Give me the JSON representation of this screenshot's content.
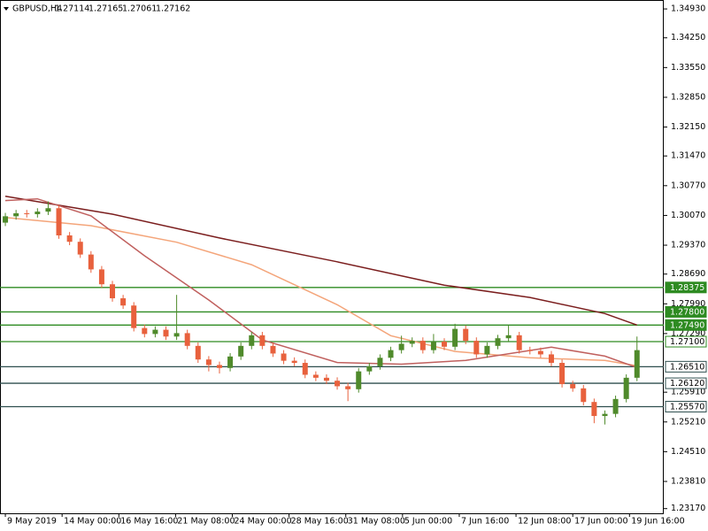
{
  "chart_data": {
    "type": "candlestick",
    "symbol": "GBPUSD,H4",
    "quote": [
      1.27114,
      1.27165,
      1.27061,
      1.27162
    ],
    "bull_color": "#4f8a2b",
    "bear_color": "#e8613d",
    "xlim": [
      -0.5,
      61.5
    ],
    "ylim": [
      1.2306,
      1.3514
    ],
    "open": [
      1.299,
      1.3005,
      1.3012,
      1.301,
      1.3016,
      1.3024,
      1.296,
      1.2945,
      1.2915,
      1.288,
      1.2845,
      1.2812,
      1.2795,
      1.2742,
      1.2728,
      1.2738,
      1.2722,
      1.273,
      1.27,
      1.2668,
      1.2655,
      1.2648,
      1.2675,
      1.27,
      1.2725,
      1.27,
      1.2682,
      1.2665,
      1.266,
      1.2632,
      1.2625,
      1.2618,
      1.2605,
      1.2598,
      1.264,
      1.2652,
      1.2672,
      1.269,
      1.2705,
      1.2712,
      1.269,
      1.271,
      1.2698,
      1.274,
      1.2712,
      1.268,
      1.27,
      1.2718,
      1.2725,
      1.269,
      1.2688,
      1.268,
      1.266,
      1.261,
      1.26,
      1.2568,
      1.2535,
      1.254,
      1.2575,
      1.2625
    ],
    "high": [
      1.3013,
      1.302,
      1.302,
      1.3024,
      1.304,
      1.3032,
      1.2968,
      1.2953,
      1.2923,
      1.2888,
      1.2853,
      1.282,
      1.2803,
      1.275,
      1.2746,
      1.2746,
      1.282,
      1.2738,
      1.2708,
      1.2676,
      1.2663,
      1.2683,
      1.2708,
      1.2733,
      1.2733,
      1.2708,
      1.269,
      1.2673,
      1.2668,
      1.264,
      1.2633,
      1.2626,
      1.2613,
      1.2648,
      1.266,
      1.268,
      1.2698,
      1.2724,
      1.272,
      1.272,
      1.2728,
      1.2718,
      1.2752,
      1.2748,
      1.272,
      1.2708,
      1.2726,
      1.2748,
      1.2733,
      1.2698,
      1.2696,
      1.2688,
      1.2668,
      1.2618,
      1.2608,
      1.2576,
      1.2548,
      1.2583,
      1.2633,
      1.2722
    ],
    "low": [
      1.2982,
      1.2997,
      1.3002,
      1.3002,
      1.3008,
      1.2952,
      1.2937,
      1.2907,
      1.2872,
      1.2837,
      1.2804,
      1.2787,
      1.2734,
      1.272,
      1.272,
      1.2714,
      1.2714,
      1.2692,
      1.266,
      1.264,
      1.2635,
      1.264,
      1.2667,
      1.2692,
      1.2692,
      1.2674,
      1.2657,
      1.2652,
      1.2624,
      1.2617,
      1.261,
      1.2597,
      1.257,
      1.259,
      1.2632,
      1.2644,
      1.2664,
      1.2682,
      1.2697,
      1.2682,
      1.2682,
      1.269,
      1.269,
      1.2704,
      1.2672,
      1.2672,
      1.2692,
      1.271,
      1.2682,
      1.268,
      1.2672,
      1.2652,
      1.2602,
      1.2592,
      1.256,
      1.2518,
      1.2515,
      1.2532,
      1.2567,
      1.2617
    ],
    "close": [
      1.3005,
      1.3012,
      1.301,
      1.3016,
      1.3024,
      1.296,
      1.2945,
      1.2915,
      1.288,
      1.2845,
      1.2812,
      1.2795,
      1.2742,
      1.2728,
      1.2738,
      1.2722,
      1.273,
      1.27,
      1.2668,
      1.2655,
      1.2648,
      1.2675,
      1.27,
      1.2725,
      1.27,
      1.2682,
      1.2665,
      1.266,
      1.2632,
      1.2625,
      1.2618,
      1.2605,
      1.2598,
      1.264,
      1.2652,
      1.2672,
      1.269,
      1.2705,
      1.2712,
      1.269,
      1.271,
      1.2698,
      1.274,
      1.2712,
      1.268,
      1.27,
      1.2718,
      1.2725,
      1.269,
      1.2688,
      1.268,
      1.266,
      1.261,
      1.26,
      1.2568,
      1.2535,
      1.254,
      1.2575,
      1.2625,
      1.269
    ],
    "series": [
      {
        "color": "#7b1e1e",
        "x": [
          0,
          10,
          20,
          31,
          41,
          49,
          56,
          59
        ],
        "values": [
          1.3052,
          1.301,
          1.2954,
          1.2898,
          1.2843,
          1.2814,
          1.2776,
          1.2749
        ]
      },
      {
        "color": "#f4a57a",
        "x": [
          0,
          8,
          16,
          23,
          31,
          36,
          42,
          49,
          56,
          59
        ],
        "values": [
          1.3002,
          1.2983,
          1.2944,
          1.2891,
          1.2797,
          1.2724,
          1.2687,
          1.2672,
          1.2666,
          1.2653
        ]
      },
      {
        "color": "#c0605e",
        "x": [
          0,
          3,
          8,
          13,
          19,
          24,
          31,
          37,
          43,
          51,
          56,
          59
        ],
        "values": [
          1.3042,
          1.3046,
          1.3006,
          1.2912,
          1.2808,
          1.2714,
          1.2661,
          1.2657,
          1.2666,
          1.2697,
          1.2676,
          1.2649
        ]
      }
    ],
    "levels": [
      {
        "price": 1.28375,
        "color": "#2e8b22",
        "filled": true
      },
      {
        "price": {
          "value": 1.278,
          "label": "1.27800"
        },
        "color": "#2e8b22",
        "filled": true
      },
      {
        "price": {
          "value": 1.2749,
          "label": "1.27490"
        },
        "color": "#2e8b22",
        "filled": true
      },
      {
        "price": {
          "value": 1.271,
          "label": "1.27100"
        },
        "color": "#2e8b22",
        "filled": false
      },
      {
        "price": {
          "value": 1.2651,
          "label": "1.26510"
        },
        "color": "#2f4f4f",
        "filled": false
      },
      {
        "price": {
          "value": 1.2612,
          "label": "1.26120"
        },
        "color": "#2f4f4f",
        "filled": false
      },
      {
        "price": {
          "value": 1.2557,
          "label": "1.25570"
        },
        "color": "#2f4f4f",
        "filled": false
      }
    ],
    "yticks": [
      {
        "value": 1.3493,
        "label": "1.34930"
      },
      {
        "value": 1.3425,
        "label": "1.34250"
      },
      {
        "value": 1.3355,
        "label": "1.33550"
      },
      {
        "value": 1.3285,
        "label": "1.32850"
      },
      {
        "value": 1.3215,
        "label": "1.32150"
      },
      {
        "value": 1.3147,
        "label": "1.31470"
      },
      {
        "value": 1.3077,
        "label": "1.30770"
      },
      {
        "value": 1.3007,
        "label": "1.30070"
      },
      {
        "value": 1.2937,
        "label": "1.29370"
      },
      {
        "value": 1.2869,
        "label": "1.28690"
      },
      {
        "value": 1.2799,
        "label": "1.27990"
      },
      {
        "value": 1.2729,
        "label": "1.27290"
      },
      {
        "value": 1.2591,
        "label": "1.25910"
      },
      {
        "value": 1.2521,
        "label": "1.25210"
      },
      {
        "value": 1.2451,
        "label": "1.24510"
      },
      {
        "value": 1.2381,
        "label": "1.23810"
      },
      {
        "value": 1.2317,
        "label": "1.23170"
      }
    ],
    "xticks": [
      {
        "value": 0,
        "label": "9 May 2019"
      },
      {
        "value": 5.3,
        "label": "14 May 00:00"
      },
      {
        "value": 10.6,
        "label": "16 May 16:00"
      },
      {
        "value": 15.9,
        "label": "21 May 08:00"
      },
      {
        "value": 21.2,
        "label": "24 May 00:00"
      },
      {
        "value": 26.5,
        "label": "28 May 16:00"
      },
      {
        "value": 31.8,
        "label": "31 May 08:00"
      },
      {
        "value": 37.1,
        "label": "5 Jun 00:00"
      },
      {
        "value": 42.4,
        "label": "7 Jun 16:00"
      },
      {
        "value": 47.7,
        "label": "12 Jun 08:00"
      },
      {
        "value": 53,
        "label": "17 Jun 00:00"
      },
      {
        "value": 58.3,
        "label": "19 Jun 16:00"
      }
    ]
  }
}
